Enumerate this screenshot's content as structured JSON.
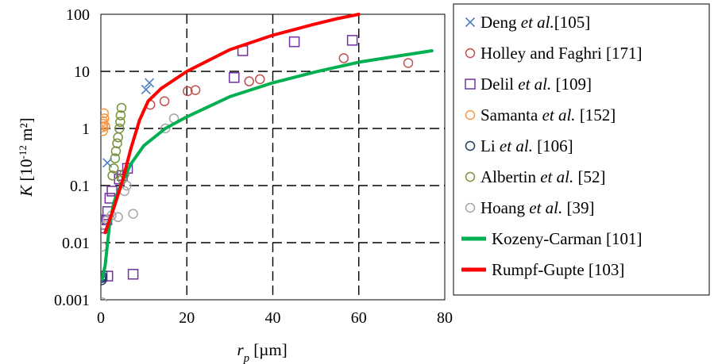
{
  "chart_data": {
    "type": "scatter",
    "x_axis": {
      "label_parts": [
        {
          "text": "r",
          "italic": true
        },
        {
          "text": "p",
          "italic": true,
          "sub": true
        },
        {
          "text": " [µm]"
        }
      ],
      "range": [
        0,
        80
      ],
      "ticks": [
        0,
        20,
        40,
        60,
        80
      ],
      "tick_labels": [
        "0",
        "20",
        "40",
        "60",
        "80"
      ]
    },
    "y_axis": {
      "label_parts": [
        {
          "text": "K",
          "italic": true
        },
        {
          "text": " [10"
        },
        {
          "text": "-12",
          "sup": true
        },
        {
          "text": " m²]"
        }
      ],
      "scale": "log",
      "range": [
        0.001,
        100
      ],
      "ticks": [
        0.001,
        0.01,
        0.1,
        1,
        10,
        100
      ],
      "tick_labels": [
        "0.001",
        "0.01",
        "0.1",
        "1",
        "10",
        "100"
      ]
    },
    "grid": {
      "style": "dashed",
      "major_x": true,
      "major_y": true
    },
    "legend_position": "right",
    "series": [
      {
        "name_parts": [
          {
            "text": "Deng "
          },
          {
            "text": "et al.",
            "italic": true
          },
          {
            "text": "[105]"
          }
        ],
        "marker": "x",
        "color": "#4a7fc1",
        "type": "scatter",
        "points": [
          [
            1.5,
            0.25
          ],
          [
            10.5,
            4.8
          ],
          [
            11.3,
            6.3
          ]
        ]
      },
      {
        "name_parts": [
          {
            "text": "Holley and Faghri [171]"
          }
        ],
        "marker": "circle",
        "color": "#c0504d",
        "type": "scatter",
        "points": [
          [
            11.5,
            2.6
          ],
          [
            14.8,
            3.0
          ],
          [
            20.2,
            4.5
          ],
          [
            22.0,
            4.7
          ],
          [
            34.5,
            6.7
          ],
          [
            37.0,
            7.3
          ],
          [
            56.5,
            17.0
          ],
          [
            71.5,
            14.0
          ]
        ]
      },
      {
        "name_parts": [
          {
            "text": "Delil "
          },
          {
            "text": "et al.",
            "italic": true
          },
          {
            "text": " [109]"
          }
        ],
        "marker": "square",
        "color": "#7030a0",
        "type": "scatter",
        "points": [
          [
            0.3,
            0.0026
          ],
          [
            1.6,
            0.0026
          ],
          [
            7.5,
            0.0028
          ],
          [
            0.6,
            0.018
          ],
          [
            1.0,
            0.021
          ],
          [
            1.4,
            0.025
          ],
          [
            1.6,
            0.035
          ],
          [
            2.1,
            0.06
          ],
          [
            2.6,
            0.08
          ],
          [
            4.3,
            0.13
          ],
          [
            5.0,
            0.15
          ],
          [
            6.2,
            0.2
          ],
          [
            31.0,
            7.8
          ],
          [
            33.0,
            23.0
          ],
          [
            45.0,
            33.0
          ],
          [
            58.5,
            35.0
          ]
        ]
      },
      {
        "name_parts": [
          {
            "text": "Samanta "
          },
          {
            "text": "et al.",
            "italic": true
          },
          {
            "text": " [152]"
          }
        ],
        "marker": "circle",
        "color": "#f79646",
        "type": "scatter",
        "points": [
          [
            0.5,
            0.9
          ],
          [
            0.5,
            1.05
          ],
          [
            0.6,
            1.2
          ],
          [
            0.5,
            1.35
          ],
          [
            0.8,
            1.5
          ],
          [
            0.7,
            1.85
          ],
          [
            1.0,
            1.1
          ]
        ]
      },
      {
        "name_parts": [
          {
            "text": "Li "
          },
          {
            "text": "et al.",
            "italic": true
          },
          {
            "text": " [106]"
          }
        ],
        "marker": "circle",
        "color": "#1f3864",
        "type": "scatter",
        "points": [
          [
            0.2,
            0.0022
          ],
          [
            0.25,
            0.0024
          ],
          [
            0.3,
            0.0026
          ]
        ]
      },
      {
        "name_parts": [
          {
            "text": "Albertin "
          },
          {
            "text": "et al.",
            "italic": true
          },
          {
            "text": " [52]"
          }
        ],
        "marker": "circle",
        "color": "#76923c",
        "type": "scatter",
        "points": [
          [
            2.7,
            0.15
          ],
          [
            3.0,
            0.2
          ],
          [
            3.3,
            0.3
          ],
          [
            3.5,
            0.4
          ],
          [
            3.8,
            0.55
          ],
          [
            4.0,
            0.7
          ],
          [
            4.3,
            1.0
          ],
          [
            4.5,
            1.3
          ],
          [
            4.6,
            1.7
          ],
          [
            4.8,
            2.3
          ],
          [
            5.0,
            0.13
          ],
          [
            5.5,
            0.16
          ]
        ]
      },
      {
        "name_parts": [
          {
            "text": "Hoang "
          },
          {
            "text": "et al.",
            "italic": true
          },
          {
            "text": " [39]"
          }
        ],
        "marker": "circle",
        "color": "#a6a6a6",
        "type": "scatter",
        "points": [
          [
            0.3,
            0.0009
          ],
          [
            0.3,
            0.0085
          ],
          [
            1.0,
            0.02
          ],
          [
            1.5,
            0.025
          ],
          [
            2.5,
            0.03
          ],
          [
            4.0,
            0.028
          ],
          [
            5.5,
            0.08
          ],
          [
            6.0,
            0.1
          ],
          [
            7.5,
            0.032
          ],
          [
            15.0,
            1.0
          ],
          [
            17.0,
            1.5
          ]
        ]
      },
      {
        "name": "Kozeny-Carman [101]",
        "type": "line",
        "color": "#00b050",
        "line_width": 4,
        "points": [
          [
            0.3,
            0.0023
          ],
          [
            1,
            0.004
          ],
          [
            2,
            0.02
          ],
          [
            3,
            0.05
          ],
          [
            5,
            0.12
          ],
          [
            7,
            0.24
          ],
          [
            10,
            0.5
          ],
          [
            15,
            1.0
          ],
          [
            20,
            1.6
          ],
          [
            30,
            3.6
          ],
          [
            40,
            6.3
          ],
          [
            50,
            9.8
          ],
          [
            60,
            14.5
          ],
          [
            70,
            19.0
          ],
          [
            77,
            23.0
          ]
        ]
      },
      {
        "name": "Rumpf-Gupte [103]",
        "type": "line",
        "color": "#ff0000",
        "line_width": 4,
        "points": [
          [
            1,
            0.015
          ],
          [
            3,
            0.04
          ],
          [
            5,
            0.12
          ],
          [
            7,
            0.45
          ],
          [
            9,
            1.4
          ],
          [
            11,
            3.0
          ],
          [
            14,
            5.0
          ],
          [
            20,
            10.0
          ],
          [
            30,
            24.0
          ],
          [
            40,
            43.0
          ],
          [
            50,
            68.0
          ],
          [
            55,
            84.0
          ],
          [
            60,
            100.0
          ]
        ]
      }
    ]
  }
}
